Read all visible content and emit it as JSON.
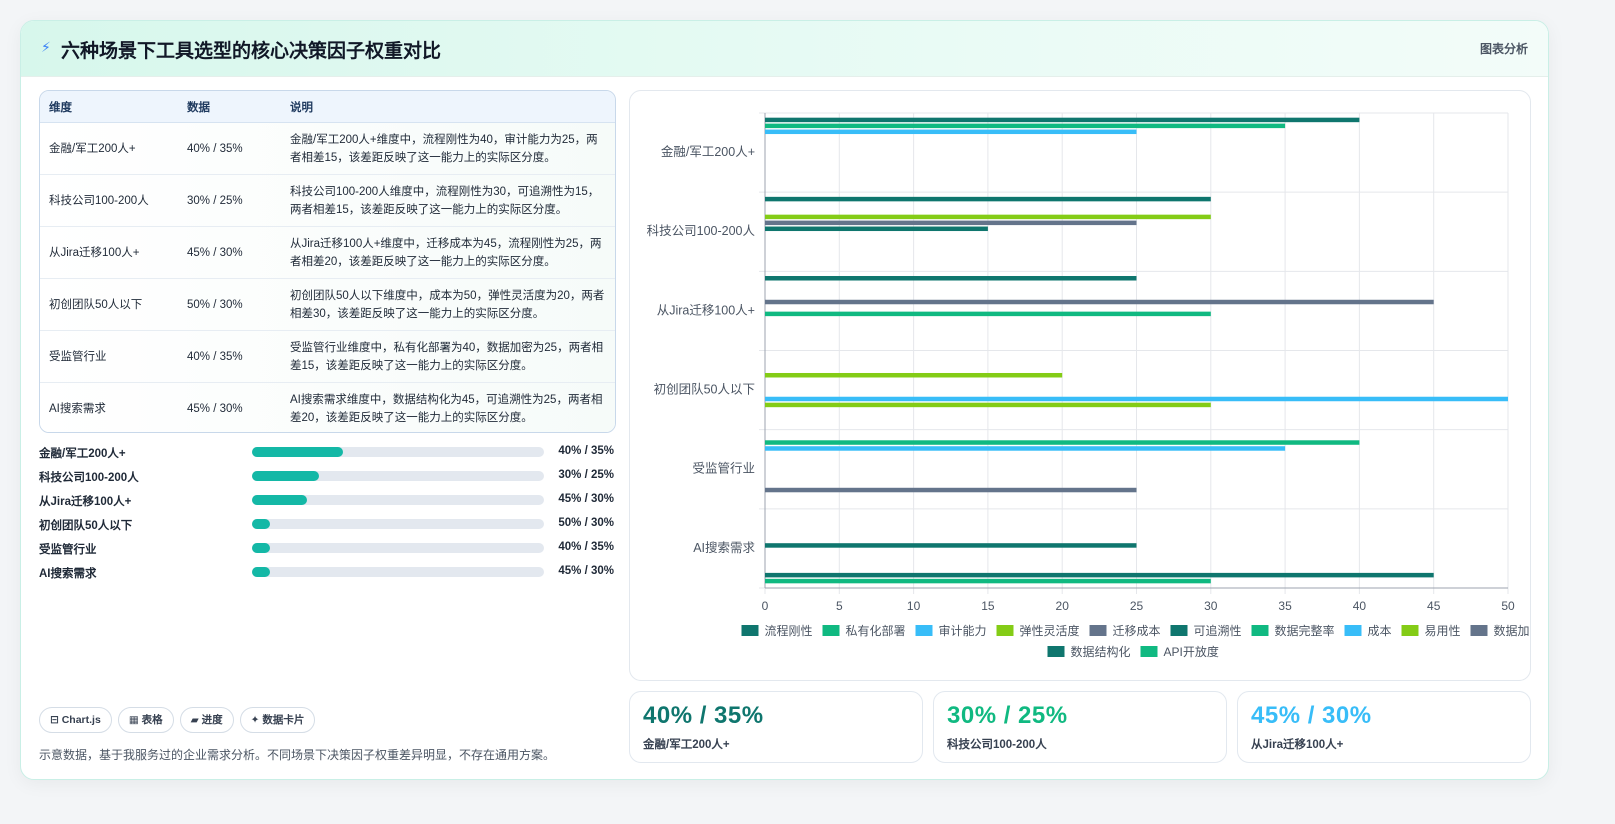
{
  "header": {
    "icon": "bolt-icon",
    "title": "六种场景下工具选型的核心决策因子权重对比",
    "tag": "图表分析"
  },
  "table": {
    "headers": [
      "维度",
      "数据",
      "说明"
    ],
    "rows": [
      {
        "dim": "金融/军工200人+",
        "data": "40% / 35%",
        "desc": "金融/军工200人+维度中，流程刚性为40，审计能力为25，两者相差15，该差距反映了这一能力上的实际区分度。"
      },
      {
        "dim": "科技公司100-200人",
        "data": "30% / 25%",
        "desc": "科技公司100-200人维度中，流程刚性为30，可追溯性为15，两者相差15，该差距反映了这一能力上的实际区分度。"
      },
      {
        "dim": "从Jira迁移100人+",
        "data": "45% / 30%",
        "desc": "从Jira迁移100人+维度中，迁移成本为45，流程刚性为25，两者相差20，该差距反映了这一能力上的实际区分度。"
      },
      {
        "dim": "初创团队50人以下",
        "data": "50% / 30%",
        "desc": "初创团队50人以下维度中，成本为50，弹性灵活度为20，两者相差30，该差距反映了这一能力上的实际区分度。"
      },
      {
        "dim": "受监管行业",
        "data": "40% / 35%",
        "desc": "受监管行业维度中，私有化部署为40，数据加密为25，两者相差15，该差距反映了这一能力上的实际区分度。"
      },
      {
        "dim": "AI搜索需求",
        "data": "45% / 30%",
        "desc": "AI搜索需求维度中，数据结构化为45，可追溯性为25，两者相差20，该差距反映了这一能力上的实际区分度。"
      }
    ]
  },
  "progress": [
    {
      "label": "金融/军工200人+",
      "value": "40% / 35%",
      "fill": 0.31
    },
    {
      "label": "科技公司100-200人",
      "value": "30% / 25%",
      "fill": 0.23
    },
    {
      "label": "从Jira迁移100人+",
      "value": "45% / 30%",
      "fill": 0.19
    },
    {
      "label": "初创团队50人以下",
      "value": "50% / 30%",
      "fill": 0.06
    },
    {
      "label": "受监管行业",
      "value": "40% / 35%",
      "fill": 0.06
    },
    {
      "label": "AI搜索需求",
      "value": "45% / 30%",
      "fill": 0.06
    }
  ],
  "chips": [
    "⊟ Chart.js",
    "▦ 表格",
    "▰ 进度",
    "✦ 数据卡片"
  ],
  "note": "示意数据，基于我服务过的企业需求分析。不同场景下决策因子权重差异明显，不存在通用方案。",
  "kpis": [
    {
      "value": "40% / 35%",
      "label": "金融/军工200人+",
      "color": "#0f766e"
    },
    {
      "value": "30% / 25%",
      "label": "科技公司100-200人",
      "color": "#10b981"
    },
    {
      "value": "45% / 30%",
      "label": "从Jira迁移100人+",
      "color": "#38bdf8"
    }
  ],
  "chart_data": {
    "type": "bar",
    "orientation": "horizontal",
    "categories": [
      "金融/军工200人+",
      "科技公司100-200人",
      "从Jira迁移100人+",
      "初创团队50人以下",
      "受监管行业",
      "AI搜索需求"
    ],
    "xlim": [
      0,
      50
    ],
    "xticks": [
      0,
      5,
      10,
      15,
      20,
      25,
      30,
      35,
      40,
      45,
      50
    ],
    "grid": true,
    "legend_position": "bottom",
    "series": [
      {
        "name": "流程刚性",
        "color": "#0f766e",
        "values": [
          40,
          30,
          25,
          null,
          null,
          null
        ]
      },
      {
        "name": "私有化部署",
        "color": "#10b981",
        "values": [
          35,
          null,
          null,
          null,
          40,
          null
        ]
      },
      {
        "name": "审计能力",
        "color": "#38bdf8",
        "values": [
          25,
          null,
          null,
          null,
          35,
          null
        ]
      },
      {
        "name": "弹性灵活度",
        "color": "#84cc16",
        "values": [
          null,
          30,
          null,
          20,
          null,
          null
        ]
      },
      {
        "name": "迁移成本",
        "color": "#64748b",
        "values": [
          null,
          25,
          45,
          null,
          null,
          null
        ]
      },
      {
        "name": "可追溯性",
        "color": "#0f766e",
        "values": [
          null,
          15,
          null,
          null,
          null,
          25
        ]
      },
      {
        "name": "数据完整率",
        "color": "#10b981",
        "values": [
          null,
          null,
          30,
          null,
          null,
          null
        ]
      },
      {
        "name": "成本",
        "color": "#38bdf8",
        "values": [
          null,
          null,
          null,
          50,
          null,
          null
        ]
      },
      {
        "name": "易用性",
        "color": "#84cc16",
        "values": [
          null,
          null,
          null,
          30,
          null,
          null
        ]
      },
      {
        "name": "数据加密",
        "color": "#64748b",
        "values": [
          null,
          null,
          null,
          null,
          25,
          null
        ]
      },
      {
        "name": "数据结构化",
        "color": "#0f766e",
        "values": [
          null,
          null,
          null,
          null,
          null,
          45
        ]
      },
      {
        "name": "API开放度",
        "color": "#10b981",
        "values": [
          null,
          null,
          null,
          null,
          null,
          30
        ]
      }
    ]
  }
}
